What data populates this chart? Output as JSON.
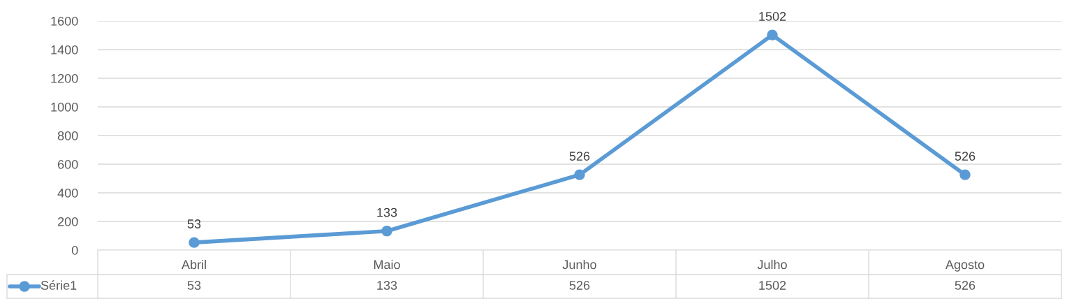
{
  "chart_data": {
    "type": "line",
    "categories": [
      "Abril",
      "Maio",
      "Junho",
      "Julho",
      "Agosto"
    ],
    "series": [
      {
        "name": "Série1",
        "color": "#5b9bd5",
        "values": [
          53,
          133,
          526,
          1502,
          526
        ],
        "value_labels": [
          "53",
          "133",
          "526",
          "1502",
          "526"
        ]
      }
    ],
    "ylim": [
      0,
      1600
    ],
    "yticks": [
      0,
      200,
      400,
      600,
      800,
      1000,
      1200,
      1400,
      1600
    ],
    "annotations": [
      "53",
      "133",
      "526",
      "1502",
      "526"
    ],
    "grid": "y",
    "marker": "circle",
    "line_style": "solid",
    "data_labels": true,
    "legend": "bottom"
  }
}
